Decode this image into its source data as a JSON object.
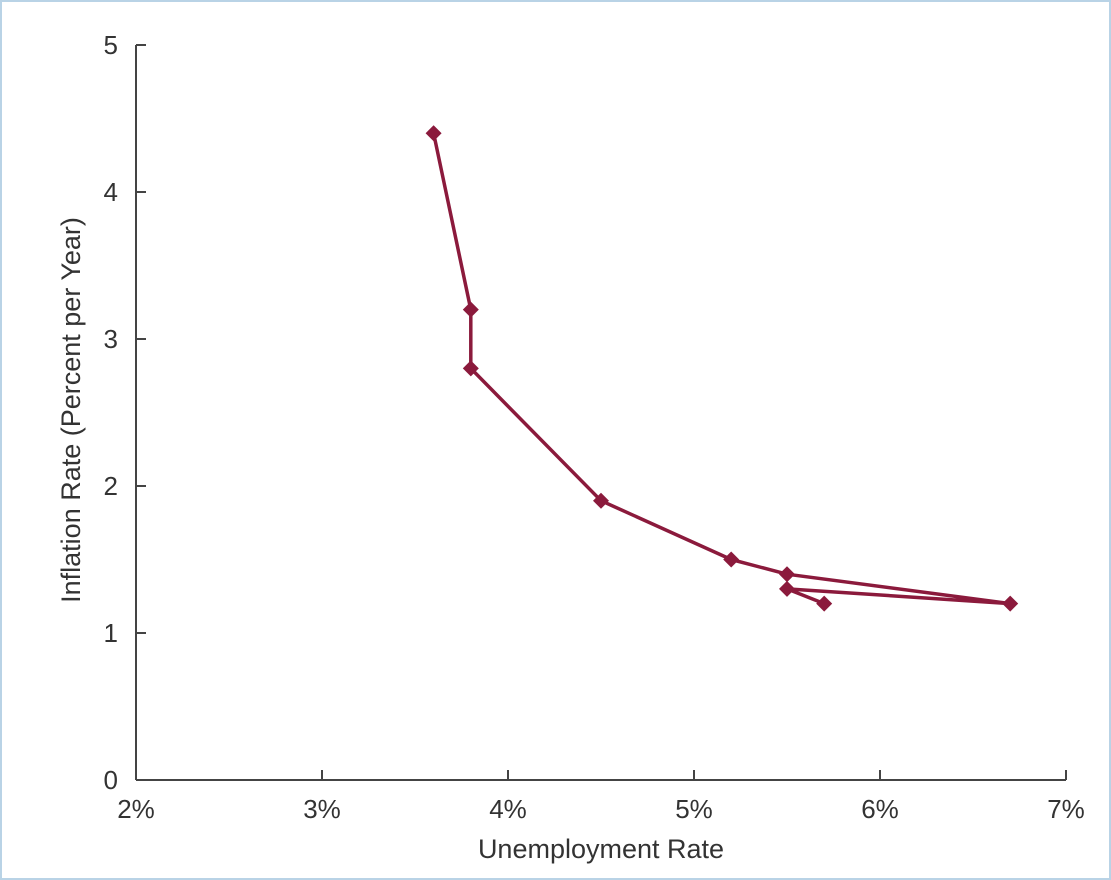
{
  "chart_data": {
    "type": "line",
    "title": "",
    "xlabel": "Unemployment Rate",
    "ylabel": "Inflation Rate (Percent per Year)",
    "xlim": [
      2,
      7
    ],
    "ylim": [
      0,
      5
    ],
    "x_ticks": [
      2,
      3,
      4,
      5,
      6,
      7
    ],
    "x_tick_labels": [
      "2%",
      "3%",
      "4%",
      "5%",
      "6%",
      "7%"
    ],
    "y_ticks": [
      0,
      1,
      2,
      3,
      4,
      5
    ],
    "y_tick_labels": [
      "0",
      "1",
      "2",
      "3",
      "4",
      "5"
    ],
    "grid": false,
    "legend": "none",
    "series": [
      {
        "color": "#8b1a3c",
        "points": [
          {
            "x": 3.6,
            "y": 4.4
          },
          {
            "x": 3.8,
            "y": 3.2
          },
          {
            "x": 3.8,
            "y": 2.8
          },
          {
            "x": 4.5,
            "y": 1.9
          },
          {
            "x": 5.2,
            "y": 1.5
          },
          {
            "x": 5.5,
            "y": 1.4
          },
          {
            "x": 6.7,
            "y": 1.2
          },
          {
            "x": 5.5,
            "y": 1.3
          },
          {
            "x": 5.7,
            "y": 1.2
          }
        ]
      }
    ]
  }
}
